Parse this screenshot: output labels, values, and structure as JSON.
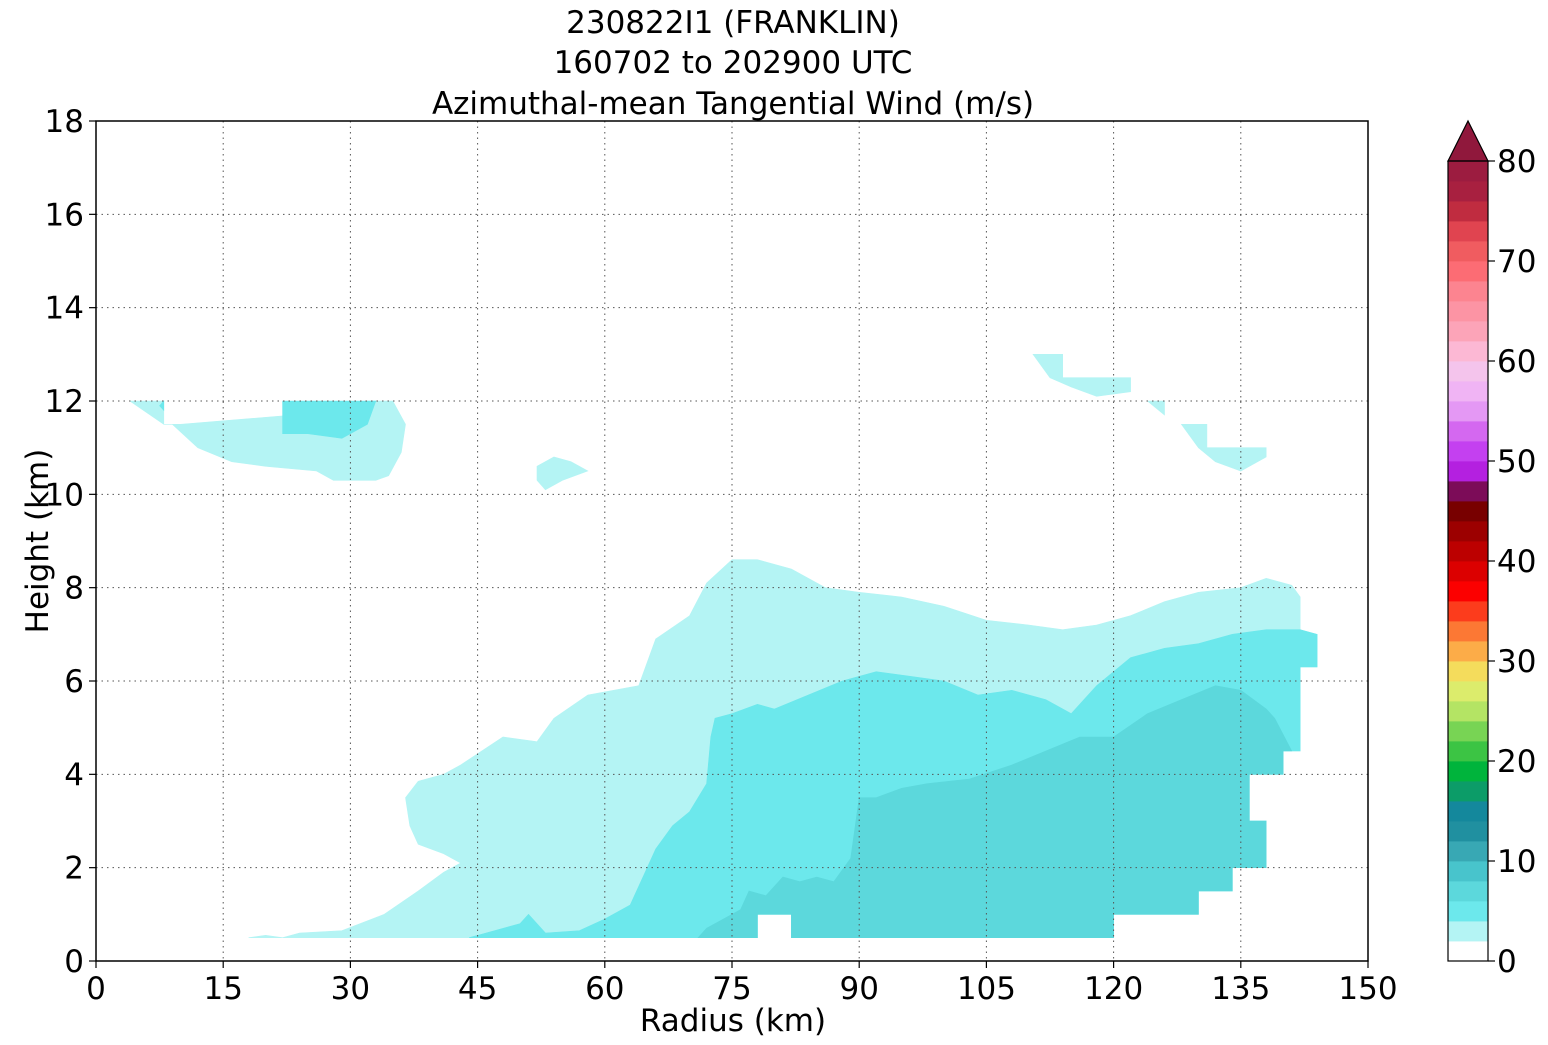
{
  "chart_data": {
    "type": "filled-contour",
    "title_lines": [
      "230822I1 (FRANKLIN)",
      "160702 to 202900 UTC",
      "Azimuthal-mean Tangential Wind (m/s)"
    ],
    "xlabel": "Radius (km)",
    "ylabel": "Height (km)",
    "xlim": [
      0,
      150
    ],
    "ylim": [
      0,
      18
    ],
    "xticks": [
      0,
      15,
      30,
      45,
      60,
      75,
      90,
      105,
      120,
      135,
      150
    ],
    "yticks": [
      0,
      2,
      4,
      6,
      8,
      10,
      12,
      14,
      16,
      18
    ],
    "grid": true,
    "colorbar": {
      "min": 0,
      "max": 80,
      "step": 2,
      "ticks": [
        0,
        10,
        20,
        30,
        40,
        50,
        60,
        70,
        80
      ],
      "extend": "max",
      "colors": [
        "#ffffff",
        "#b4f4f4",
        "#6ce8ec",
        "#5cd8dc",
        "#48c4cc",
        "#38a8b4",
        "#2090a0",
        "#14889c",
        "#0c9c68",
        "#00b43c",
        "#3cc444",
        "#78d454",
        "#b4e464",
        "#dcec6c",
        "#f4dc5c",
        "#fcac48",
        "#fc7834",
        "#fc3c1c",
        "#fc0000",
        "#dc0000",
        "#bc0000",
        "#9c0000",
        "#780000",
        "#7c0c58",
        "#b420e0",
        "#c440f0",
        "#d468f0",
        "#e498f4",
        "#f0b4f4",
        "#f4c4ec",
        "#fcb8d4",
        "#fca4b8",
        "#fc94a4",
        "#fc8490",
        "#fc6c74",
        "#f05c60",
        "#e04450",
        "#c02c40",
        "#a82040",
        "#9c1c40"
      ],
      "extend_color": "#90183c"
    },
    "contours": [
      {
        "level": 2,
        "color": "#b4f4f4",
        "region": "upper-left patch",
        "points": [
          [
            4,
            12
          ],
          [
            8,
            12
          ],
          [
            8,
            11.5
          ],
          [
            10,
            11.5
          ],
          [
            30,
            11.8
          ],
          [
            32,
            12
          ],
          [
            35,
            12
          ],
          [
            36.5,
            11.5
          ],
          [
            36,
            10.9
          ],
          [
            34.5,
            10.4
          ],
          [
            33,
            10.3
          ],
          [
            28,
            10.3
          ],
          [
            26,
            10.5
          ],
          [
            20,
            10.6
          ],
          [
            16,
            10.7
          ],
          [
            12,
            11.0
          ],
          [
            9,
            11.5
          ],
          [
            8,
            11.5
          ],
          [
            4,
            12
          ]
        ]
      },
      {
        "level": 4,
        "color": "#6ce8ec",
        "region": "upper-left patch",
        "points": [
          [
            8,
            12
          ],
          [
            7.5,
            11.9
          ],
          [
            8,
            11.8
          ]
        ]
      },
      {
        "level": 4,
        "color": "#6ce8ec",
        "region": "upper-left patch",
        "points": [
          [
            22,
            12
          ],
          [
            33,
            12
          ],
          [
            32,
            11.5
          ],
          [
            29,
            11.2
          ],
          [
            25,
            11.3
          ],
          [
            22,
            11.3
          ]
        ]
      },
      {
        "level": 2,
        "color": "#b4f4f4",
        "region": "small patch near 55 km",
        "points": [
          [
            52,
            10.6
          ],
          [
            54,
            10.8
          ],
          [
            56,
            10.7
          ],
          [
            58,
            10.5
          ],
          [
            55,
            10.3
          ],
          [
            53,
            10.1
          ],
          [
            52,
            10.3
          ]
        ]
      },
      {
        "level": 2,
        "color": "#b4f4f4",
        "region": "upper-right patches",
        "points": [
          [
            110.5,
            13
          ],
          [
            114,
            13
          ],
          [
            114,
            12.5
          ],
          [
            122,
            12.5
          ],
          [
            122,
            12.2
          ],
          [
            118,
            12.1
          ],
          [
            115,
            12.3
          ],
          [
            112.5,
            12.5
          ]
        ]
      },
      {
        "level": 2,
        "color": "#b4f4f4",
        "region": "upper-right patches",
        "points": [
          [
            124,
            12
          ],
          [
            126,
            12
          ],
          [
            126,
            11.7
          ]
        ]
      },
      {
        "level": 2,
        "color": "#b4f4f4",
        "region": "upper-right patches",
        "points": [
          [
            128,
            11.5
          ],
          [
            131,
            11.5
          ],
          [
            131,
            11
          ],
          [
            138,
            11
          ],
          [
            138,
            10.8
          ],
          [
            135,
            10.5
          ],
          [
            132,
            10.7
          ],
          [
            130,
            11
          ]
        ]
      },
      {
        "level": 2,
        "color": "#b4f4f4",
        "region": "main lower region",
        "points": [
          [
            18,
            0.5
          ],
          [
            20,
            0.55
          ],
          [
            22,
            0.5
          ],
          [
            24,
            0.6
          ],
          [
            29,
            0.65
          ],
          [
            34,
            1.0
          ],
          [
            38,
            1.5
          ],
          [
            41,
            1.9
          ],
          [
            43,
            2.1
          ],
          [
            41,
            2.3
          ],
          [
            38,
            2.5
          ],
          [
            37,
            2.9
          ],
          [
            36.5,
            3.5
          ],
          [
            38,
            3.85
          ],
          [
            41,
            4.0
          ],
          [
            43,
            4.2
          ],
          [
            48,
            4.8
          ],
          [
            52,
            4.7
          ],
          [
            54,
            5.2
          ],
          [
            58,
            5.7
          ],
          [
            64,
            5.9
          ],
          [
            66,
            6.9
          ],
          [
            70,
            7.4
          ],
          [
            72,
            8.1
          ],
          [
            75,
            8.6
          ],
          [
            78,
            8.6
          ],
          [
            82,
            8.4
          ],
          [
            86,
            8.0
          ],
          [
            90,
            7.9
          ],
          [
            95,
            7.8
          ],
          [
            100,
            7.6
          ],
          [
            105,
            7.3
          ],
          [
            110,
            7.2
          ],
          [
            114,
            7.1
          ],
          [
            118,
            7.2
          ],
          [
            122,
            7.4
          ],
          [
            126,
            7.7
          ],
          [
            130,
            7.9
          ],
          [
            135,
            8.0
          ],
          [
            138,
            8.2
          ],
          [
            141,
            8.05
          ],
          [
            142,
            7.8
          ],
          [
            142,
            7.0
          ],
          [
            144,
            7.0
          ],
          [
            144,
            6.3
          ],
          [
            142,
            6.3
          ],
          [
            142,
            4.5
          ],
          [
            140,
            4.5
          ],
          [
            140,
            4.0
          ],
          [
            136,
            4.0
          ],
          [
            136,
            3.0
          ],
          [
            138,
            3.0
          ],
          [
            138,
            2.0
          ],
          [
            134,
            2.0
          ],
          [
            134,
            1.5
          ],
          [
            130,
            1.5
          ],
          [
            130,
            1.0
          ],
          [
            120,
            1.0
          ],
          [
            120,
            0.5
          ],
          [
            82,
            0.5
          ],
          [
            82,
            1.0
          ],
          [
            78,
            1.0
          ],
          [
            78,
            0.5
          ]
        ]
      },
      {
        "level": 4,
        "color": "#6ce8ec",
        "region": "main lower region",
        "points": [
          [
            44,
            0.5
          ],
          [
            46,
            0.6
          ],
          [
            50,
            0.8
          ],
          [
            51,
            1.0
          ],
          [
            53,
            0.6
          ],
          [
            57,
            0.65
          ],
          [
            60,
            0.9
          ],
          [
            63,
            1.2
          ],
          [
            65,
            2.0
          ],
          [
            66,
            2.4
          ],
          [
            68,
            2.9
          ],
          [
            70,
            3.2
          ],
          [
            72,
            3.8
          ],
          [
            72.5,
            4.8
          ],
          [
            73,
            5.2
          ],
          [
            75,
            5.3
          ],
          [
            78,
            5.5
          ],
          [
            80,
            5.4
          ],
          [
            84,
            5.7
          ],
          [
            88,
            6.0
          ],
          [
            92,
            6.2
          ],
          [
            96,
            6.1
          ],
          [
            100,
            6.0
          ],
          [
            104,
            5.7
          ],
          [
            108,
            5.8
          ],
          [
            112,
            5.6
          ],
          [
            115,
            5.3
          ],
          [
            118,
            5.9
          ],
          [
            122,
            6.5
          ],
          [
            126,
            6.7
          ],
          [
            130,
            6.8
          ],
          [
            134,
            7.0
          ],
          [
            138,
            7.1
          ],
          [
            142,
            7.1
          ],
          [
            144,
            7.0
          ],
          [
            144,
            6.3
          ],
          [
            142,
            6.3
          ],
          [
            142,
            4.5
          ],
          [
            140,
            4.5
          ],
          [
            140,
            4.0
          ],
          [
            136,
            4.0
          ],
          [
            136,
            3.0
          ],
          [
            138,
            3.0
          ],
          [
            138,
            2.0
          ],
          [
            134,
            2.0
          ],
          [
            134,
            1.5
          ],
          [
            130,
            1.5
          ],
          [
            130,
            1.0
          ],
          [
            120,
            1.0
          ],
          [
            120,
            0.5
          ],
          [
            82,
            0.5
          ],
          [
            82,
            1.0
          ],
          [
            78,
            1.0
          ],
          [
            78,
            0.5
          ]
        ]
      },
      {
        "level": 6,
        "color": "#5cd8dc",
        "region": "main lower region",
        "points": [
          [
            71,
            0.5
          ],
          [
            72,
            0.7
          ],
          [
            74,
            0.9
          ],
          [
            76,
            1.1
          ],
          [
            77,
            1.5
          ],
          [
            79,
            1.4
          ],
          [
            81,
            1.8
          ],
          [
            83,
            1.7
          ],
          [
            85,
            1.8
          ],
          [
            87,
            1.7
          ],
          [
            89,
            2.2
          ],
          [
            90,
            3.5
          ],
          [
            92,
            3.5
          ],
          [
            95,
            3.7
          ],
          [
            98,
            3.8
          ],
          [
            103,
            3.9
          ],
          [
            108,
            4.2
          ],
          [
            112,
            4.5
          ],
          [
            116,
            4.8
          ],
          [
            120,
            4.8
          ],
          [
            124,
            5.3
          ],
          [
            128,
            5.6
          ],
          [
            132,
            5.9
          ],
          [
            135,
            5.8
          ],
          [
            138,
            5.4
          ],
          [
            139,
            5.2
          ],
          [
            141,
            4.5
          ],
          [
            140,
            4.5
          ],
          [
            140,
            4.0
          ],
          [
            136,
            4.0
          ],
          [
            136,
            3.0
          ],
          [
            138,
            3.0
          ],
          [
            138,
            2.0
          ],
          [
            134,
            2.0
          ],
          [
            134,
            1.5
          ],
          [
            130,
            1.5
          ],
          [
            130,
            1.0
          ],
          [
            120,
            1.0
          ],
          [
            120,
            0.5
          ],
          [
            82,
            0.5
          ],
          [
            82,
            1.0
          ],
          [
            78,
            1.0
          ],
          [
            78,
            0.5
          ]
        ]
      }
    ]
  }
}
